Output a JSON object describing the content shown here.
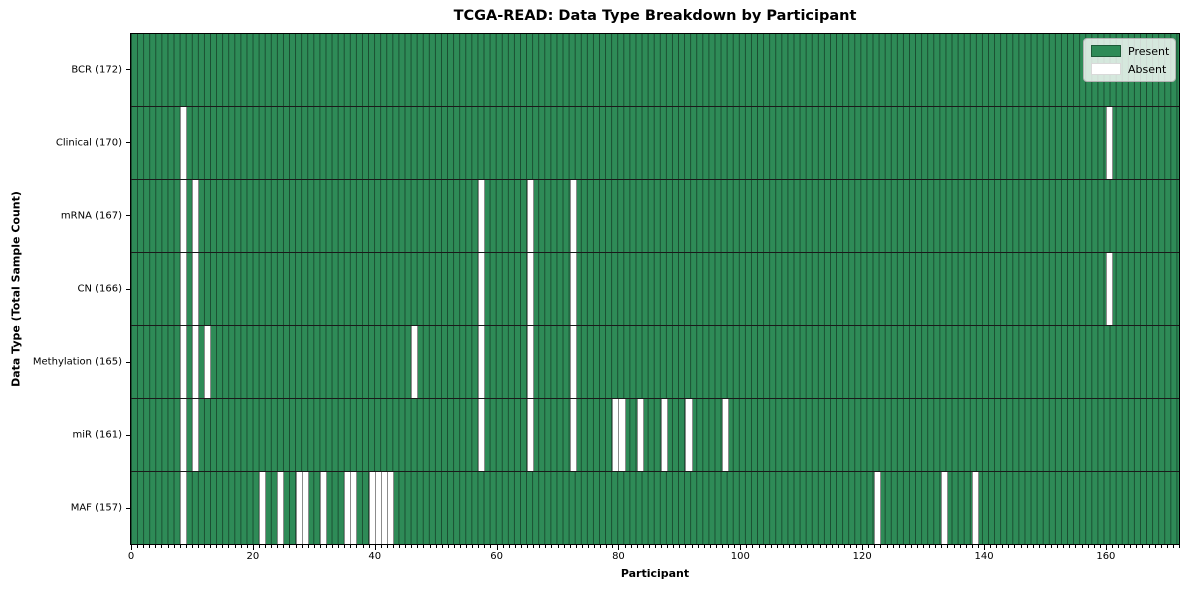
{
  "figure": {
    "title": "TCGA-READ: Data Type Breakdown by Participant",
    "xlabel": "Participant",
    "ylabel": "Data Type (Total Sample Count)"
  },
  "legend": {
    "present_label": "Present",
    "absent_label": "Absent"
  },
  "colors": {
    "present": "#2E8B57",
    "absent": "#FFFFFF",
    "cell_edge": "rgba(0,0,0,0.45)",
    "row_divider": "#1a1a1a",
    "axis_line": "#000000",
    "text": "#000000",
    "legend_bg": "rgba(255,255,255,0.8)",
    "legend_border": "#b3b3b3"
  },
  "x_axis": {
    "n_participants": 172,
    "major_tick_values": [
      0,
      20,
      40,
      60,
      80,
      100,
      120,
      140,
      160
    ],
    "minor_tick_every": 1
  },
  "chart_data": {
    "type": "heatmap",
    "title": "TCGA-READ: Data Type Breakdown by Participant",
    "xlabel": "Participant",
    "ylabel": "Data Type (Total Sample Count)",
    "x_range": [
      0,
      172
    ],
    "n_participants": 172,
    "legend_entries": [
      "Present",
      "Absent"
    ],
    "grid": true,
    "legend_position": "upper right",
    "rows": [
      {
        "label": "BCR (172)",
        "data_type": "BCR",
        "total_sample_count": 172,
        "absent_participants": []
      },
      {
        "label": "Clinical (170)",
        "data_type": "Clinical",
        "total_sample_count": 170,
        "absent_participants": [
          8,
          160
        ]
      },
      {
        "label": "mRNA (167)",
        "data_type": "mRNA",
        "total_sample_count": 167,
        "absent_participants": [
          8,
          10,
          57,
          65,
          72
        ]
      },
      {
        "label": "CN (166)",
        "data_type": "CN",
        "total_sample_count": 166,
        "absent_participants": [
          8,
          10,
          57,
          65,
          72,
          160
        ]
      },
      {
        "label": "Methylation (165)",
        "data_type": "Methylation",
        "total_sample_count": 165,
        "absent_participants": [
          8,
          10,
          12,
          46,
          57,
          65,
          72
        ]
      },
      {
        "label": "miR (161)",
        "data_type": "miR",
        "total_sample_count": 161,
        "absent_participants": [
          8,
          10,
          57,
          65,
          72,
          79,
          80,
          83,
          87,
          91,
          97
        ]
      },
      {
        "label": "MAF (157)",
        "data_type": "MAF",
        "total_sample_count": 157,
        "absent_participants": [
          8,
          21,
          24,
          27,
          28,
          31,
          35,
          36,
          39,
          40,
          41,
          42,
          122,
          133,
          138
        ]
      }
    ]
  }
}
